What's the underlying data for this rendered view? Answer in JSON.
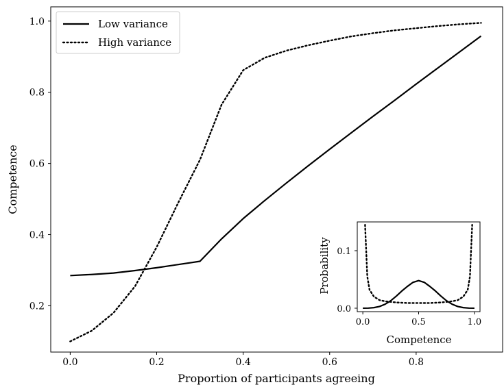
{
  "chart_data": [
    {
      "type": "line",
      "xlabel": "Proportion of participants agreeing",
      "ylabel": "Competence",
      "xlim": [
        -0.045,
        1.0
      ],
      "ylim": [
        0.07,
        1.04
      ],
      "xticks": [
        0.0,
        0.2,
        0.4,
        0.6,
        0.8
      ],
      "yticks": [
        0.2,
        0.4,
        0.6,
        0.8,
        1.0
      ],
      "tick_labels_x": [
        "0.0",
        "0.2",
        "0.4",
        "0.6",
        "0.8"
      ],
      "tick_labels_y": [
        "0.2",
        "0.4",
        "0.6",
        "0.8",
        "1.0"
      ],
      "grid": false,
      "legend": "top-left",
      "series": [
        {
          "name": "Low variance",
          "style": "solid",
          "x": [
            0.0,
            0.05,
            0.1,
            0.15,
            0.2,
            0.25,
            0.3,
            0.35,
            0.4,
            0.45,
            0.5,
            0.55,
            0.6,
            0.65,
            0.7,
            0.75,
            0.8,
            0.85,
            0.9,
            0.95
          ],
          "y": [
            0.285,
            0.288,
            0.292,
            0.299,
            0.307,
            0.316,
            0.325,
            0.388,
            0.445,
            0.496,
            0.545,
            0.593,
            0.64,
            0.686,
            0.732,
            0.777,
            0.823,
            0.868,
            0.913,
            0.958
          ]
        },
        {
          "name": "High variance",
          "style": "dotted",
          "x": [
            0.0,
            0.05,
            0.1,
            0.15,
            0.2,
            0.25,
            0.3,
            0.35,
            0.4,
            0.45,
            0.5,
            0.55,
            0.6,
            0.65,
            0.7,
            0.75,
            0.8,
            0.85,
            0.9,
            0.95
          ],
          "y": [
            0.1,
            0.13,
            0.18,
            0.255,
            0.365,
            0.49,
            0.61,
            0.765,
            0.862,
            0.897,
            0.917,
            0.932,
            0.945,
            0.957,
            0.966,
            0.974,
            0.98,
            0.986,
            0.991,
            0.995
          ]
        }
      ]
    },
    {
      "type": "line",
      "xlabel": "Competence",
      "ylabel": "Probability",
      "xlim": [
        -0.05,
        1.05
      ],
      "ylim": [
        -0.006,
        0.15
      ],
      "xticks": [
        0.0,
        0.5,
        1.0
      ],
      "yticks": [
        0.0,
        0.1
      ],
      "tick_labels_x": [
        "0.0",
        "0.5",
        "1.0"
      ],
      "tick_labels_y": [
        "0.0",
        "0.1"
      ],
      "grid": false,
      "series": [
        {
          "style": "solid",
          "x": [
            0.0,
            0.05,
            0.1,
            0.15,
            0.2,
            0.25,
            0.3,
            0.35,
            0.4,
            0.45,
            0.5,
            0.55,
            0.6,
            0.65,
            0.7,
            0.75,
            0.8,
            0.85,
            0.9,
            0.95,
            1.0
          ],
          "y": [
            0.0,
            0.0002,
            0.001,
            0.003,
            0.007,
            0.013,
            0.021,
            0.03,
            0.038,
            0.045,
            0.048,
            0.045,
            0.038,
            0.03,
            0.021,
            0.013,
            0.007,
            0.003,
            0.001,
            0.0002,
            0.0
          ]
        },
        {
          "style": "dotted",
          "x": [
            0.02,
            0.04,
            0.06,
            0.1,
            0.15,
            0.2,
            0.3,
            0.4,
            0.5,
            0.6,
            0.7,
            0.8,
            0.85,
            0.9,
            0.94,
            0.96,
            0.98
          ],
          "y": [
            0.145,
            0.055,
            0.032,
            0.02,
            0.014,
            0.012,
            0.01,
            0.009,
            0.009,
            0.009,
            0.01,
            0.012,
            0.014,
            0.02,
            0.032,
            0.055,
            0.145
          ]
        }
      ]
    }
  ]
}
